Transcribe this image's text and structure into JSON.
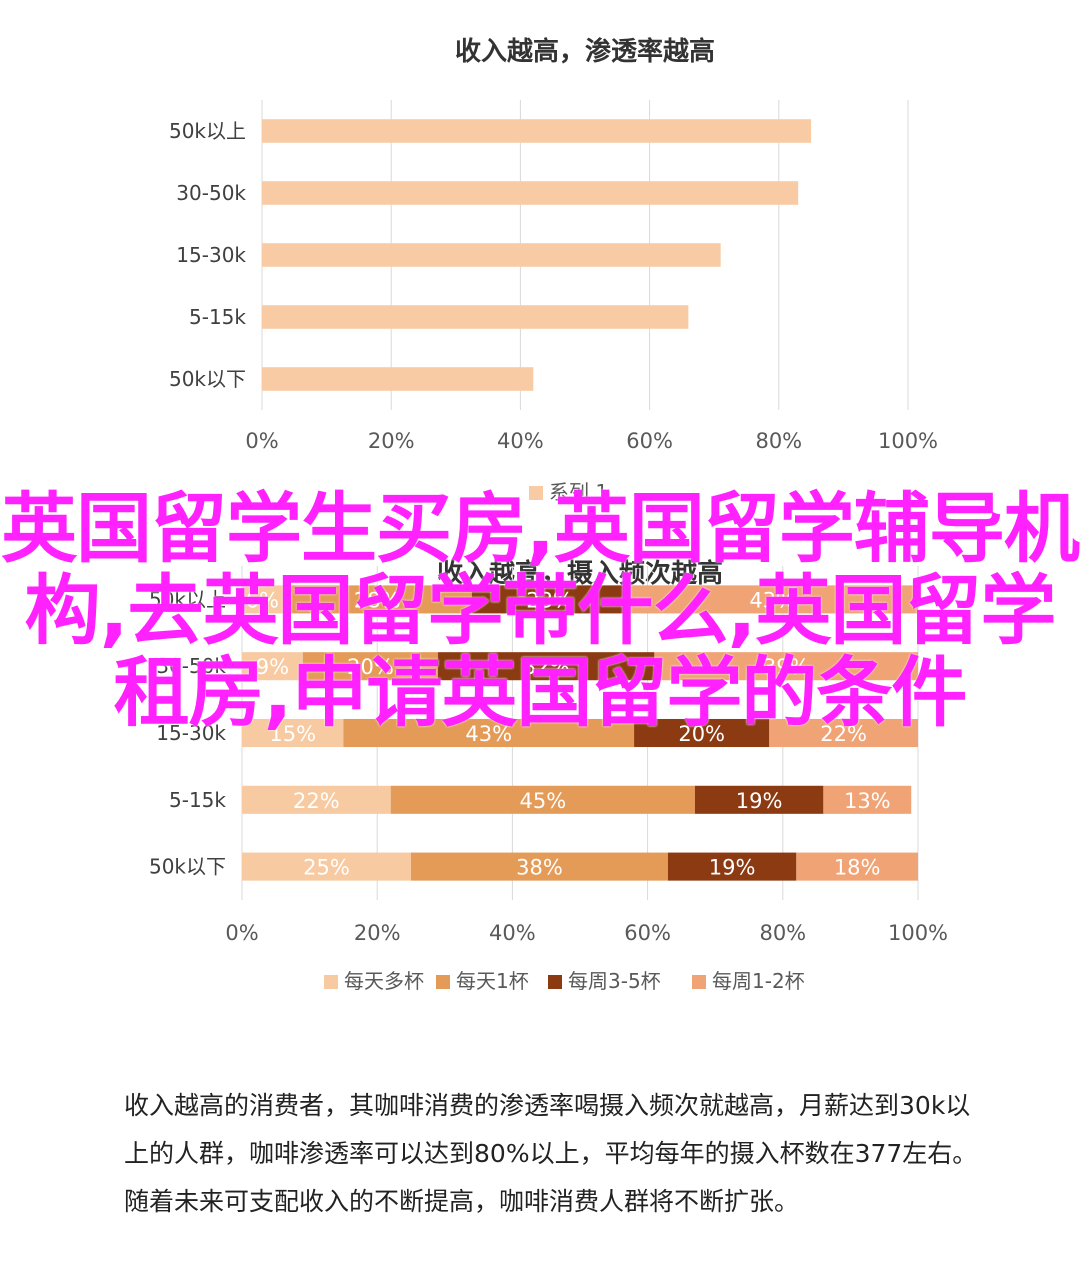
{
  "chart_data": [
    {
      "type": "bar",
      "orientation": "horizontal",
      "title": "收入越高，渗透率越高",
      "categories": [
        "50k以上",
        "30-50k",
        "15-30k",
        "5-15k",
        "50k以下"
      ],
      "series": [
        {
          "name": "系列 1",
          "values": [
            85,
            83,
            71,
            66,
            42
          ]
        }
      ],
      "xlim": [
        0,
        100
      ],
      "x_tick_labels": [
        "0%",
        "20%",
        "40%",
        "60%",
        "80%",
        "100%"
      ],
      "grid": true,
      "legend_position": "bottom",
      "colors": [
        "#f8cba4"
      ]
    },
    {
      "type": "bar",
      "orientation": "horizontal",
      "stacked": true,
      "title": "收入越高，摄入频次越高",
      "categories": [
        "50k以上",
        "30-50k",
        "15-30k",
        "5-15k",
        "50k以下"
      ],
      "series": [
        {
          "name": "每天多杯",
          "values": [
            6,
            9,
            15,
            22,
            25
          ]
        },
        {
          "name": "每天1杯",
          "values": [
            28,
            20,
            43,
            45,
            38
          ]
        },
        {
          "name": "每周3-5杯",
          "values": [
            23,
            32,
            20,
            19,
            19
          ]
        },
        {
          "name": "每周1-2杯",
          "values": [
            43,
            39,
            22,
            13,
            18
          ]
        }
      ],
      "xlim": [
        0,
        100
      ],
      "x_tick_labels": [
        "0%",
        "20%",
        "40%",
        "60%",
        "80%",
        "100%"
      ],
      "grid": true,
      "legend_position": "bottom",
      "colors": [
        "#f7caa1",
        "#e59b58",
        "#8b3a12",
        "#f0a375"
      ]
    }
  ],
  "overlay_title": "英国留学生买房,英国留学辅导机构,去英国留学带什么,英国留学租房,申请英国留学的条件",
  "overlay_color": "#ff22ff",
  "caption": "收入越高的消费者，其咖啡消费的渗透率喝摄入频次就越高，月薪达到30k以上的人群，咖啡渗透率可以达到80%以上，平均每年的摄入杯数在377左右。随着未来可支配收入的不断提高，咖啡消费人群将不断扩张。"
}
